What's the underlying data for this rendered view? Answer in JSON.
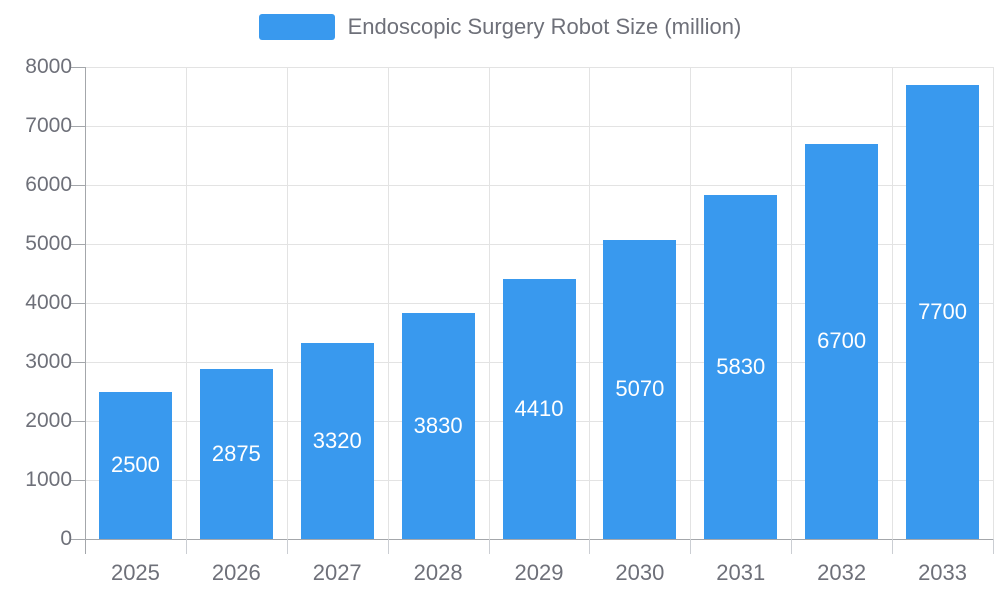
{
  "legend": {
    "label": "Endoscopic Surgery Robot Size (million)"
  },
  "chart_data": {
    "type": "bar",
    "title": "Endoscopic Surgery Robot Size (million)",
    "categories": [
      "2025",
      "2026",
      "2027",
      "2028",
      "2029",
      "2030",
      "2031",
      "2032",
      "2033"
    ],
    "values": [
      2500,
      2875,
      3320,
      3830,
      4410,
      5070,
      5830,
      6700,
      7700
    ],
    "series_name": "Endoscopic Surgery Robot Size (million)",
    "xlabel": "",
    "ylabel": "",
    "ylim": [
      0,
      8000
    ],
    "ytick_step": 1000,
    "ytick_labels": [
      "0",
      "1000",
      "2000",
      "3000",
      "4000",
      "5000",
      "6000",
      "7000",
      "8000"
    ],
    "grid": true,
    "legend_position": "top",
    "value_labels_shown": true,
    "value_label_position": "inside-center",
    "colors": {
      "bar": "#3999EE",
      "value_label": "#FFFFFF",
      "axis_text": "#6E7079",
      "grid_line": "#E3E3E3",
      "axis_line": "#A4A7AB",
      "x_tick": "#CBCED3",
      "background": "#FFFFFF"
    }
  }
}
